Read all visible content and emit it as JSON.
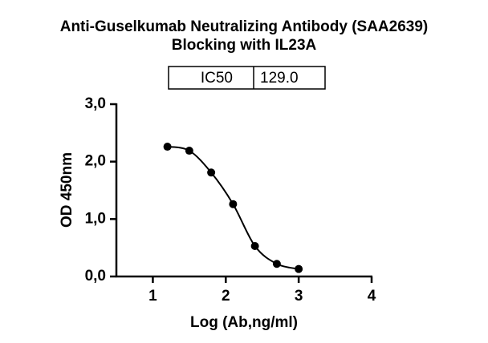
{
  "chart_data": {
    "type": "scatter",
    "title": [
      "Anti-Guselkumab Neutralizing Antibody (SAA2639)",
      "Blocking with IL23A"
    ],
    "results_table": {
      "header": "IC50",
      "value": "129.0"
    },
    "x_label": "Log (Ab,ng/ml)",
    "y_label": "OD 450nm",
    "x": [
      1.2,
      1.5,
      1.8,
      2.1,
      2.4,
      2.7,
      3.0
    ],
    "series": [
      {
        "color": "#000000",
        "values": [
          2.26,
          2.19,
          1.81,
          1.26,
          0.53,
          0.22,
          0.13
        ]
      }
    ],
    "xlim": [
      0.5,
      4
    ],
    "xticks": [
      1,
      2,
      3,
      4
    ],
    "ylim": [
      0,
      3
    ],
    "yticks": [
      {
        "value": 0,
        "label": "0,0"
      },
      {
        "value": 1,
        "label": "1,0"
      },
      {
        "value": 2,
        "label": "2,0"
      },
      {
        "value": 3,
        "label": "3,0"
      }
    ],
    "fit_curve": true
  }
}
